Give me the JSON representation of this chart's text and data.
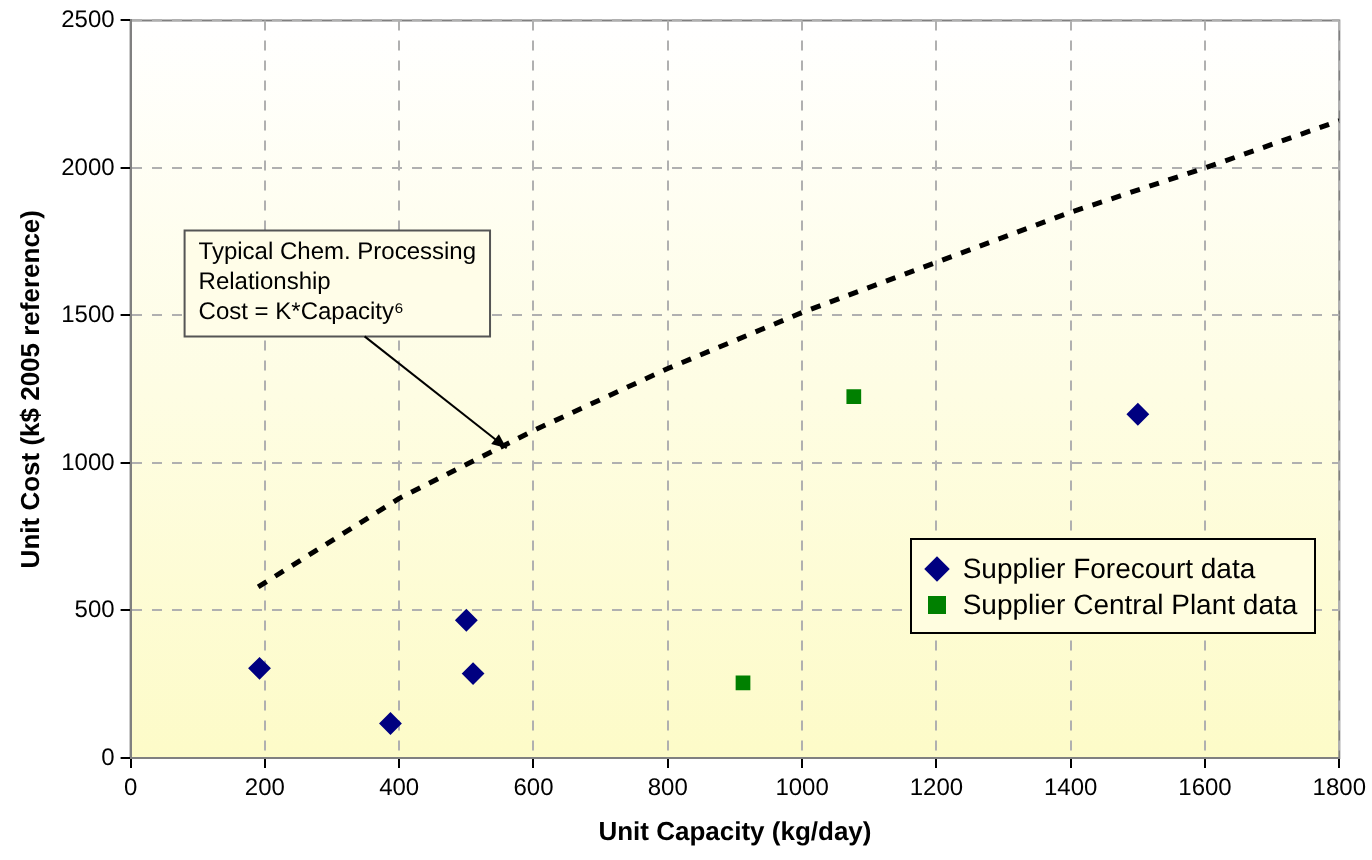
{
  "chart_data": {
    "type": "scatter",
    "xlabel": "Unit Capacity (kg/day)",
    "ylabel": "Unit Cost (k$ 2005 reference)",
    "xlim": [
      0,
      1800
    ],
    "xticks": [
      0,
      200,
      400,
      600,
      800,
      1000,
      1200,
      1400,
      1600,
      1800
    ],
    "ylim": [
      0,
      2500
    ],
    "yticks": [
      0,
      500,
      1000,
      1500,
      2000,
      2500
    ],
    "grid": true,
    "legend": "bottom right",
    "series": [
      {
        "name": "Supplier Forecourt data",
        "color": "#000080",
        "marker": "diamond",
        "x": [
          192,
          387,
          500,
          510,
          1500
        ],
        "values": [
          304,
          117,
          467,
          286,
          1165
        ]
      },
      {
        "name": "Supplier Central Plant data",
        "color": "#008000",
        "marker": "square",
        "x": [
          912,
          1077
        ],
        "values": [
          255,
          1225
        ]
      },
      {
        "type": "line",
        "color": "#000000",
        "line_style": "dashed",
        "marker": "none",
        "x": [
          190,
          400,
          600,
          800,
          1000,
          1200,
          1400,
          1600,
          1800
        ],
        "values": [
          580,
          880,
          1110,
          1320,
          1510,
          1680,
          1850,
          2000,
          2160
        ]
      }
    ],
    "annotations": [
      {
        "text": "Typical Chem. Processing\nRelationship\nCost = K*Capacity⁶",
        "x": 560,
        "y": 1050
      }
    ]
  }
}
